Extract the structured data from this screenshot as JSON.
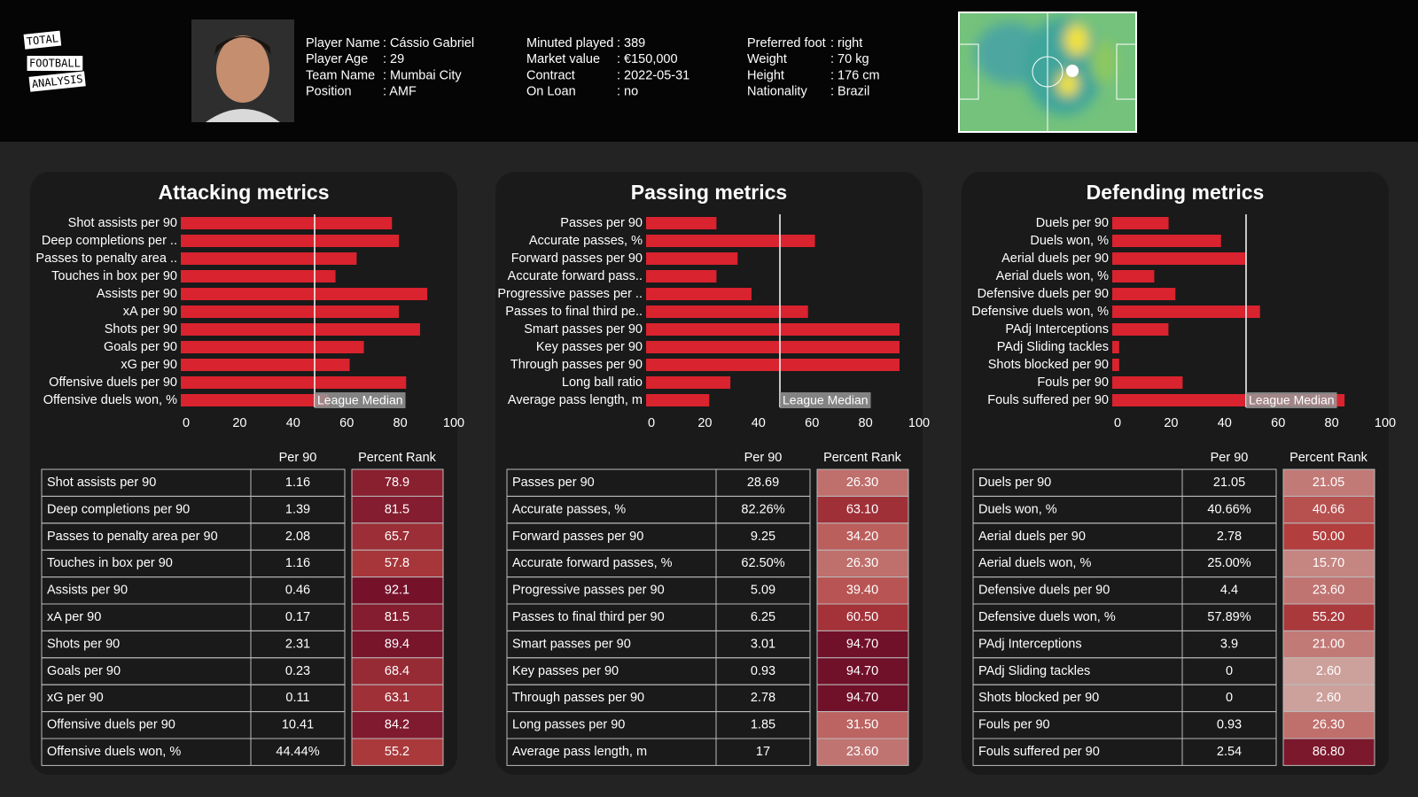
{
  "header": {
    "logo": [
      "TOTAL",
      "FOOTBALL",
      "ANALYSIS"
    ],
    "columns": [
      [
        {
          "label": "Player Name",
          "value": ": Cássio Gabriel"
        },
        {
          "label": "Player Age",
          "value": ": 29"
        },
        {
          "label": "Team Name",
          "value": ": Mumbai City"
        },
        {
          "label": "Position",
          "value": ": AMF"
        }
      ],
      [
        {
          "label": "Minuted played",
          "value": ": 389"
        },
        {
          "label": "Market value",
          "value": ": €150,000"
        },
        {
          "label": "Contract",
          "value": ": 2022-05-31"
        },
        {
          "label": "On Loan",
          "value": ": no"
        }
      ],
      [
        {
          "label": "Preferred foot",
          "value": ": right"
        },
        {
          "label": "Weight",
          "value": ": 70 kg"
        },
        {
          "label": "Height",
          "value": ": 176 cm"
        },
        {
          "label": "Nationality",
          "value": ": Brazil"
        }
      ]
    ]
  },
  "chart_data": [
    {
      "type": "bar",
      "title": "Attacking metrics",
      "color": "#d9232e",
      "categories": [
        "Shot assists per 90",
        "Deep completions per ..",
        "Passes to penalty area ..",
        "Touches in box per 90",
        "Assists per 90",
        "xA per 90",
        "Shots per 90",
        "Goals per 90",
        "xG per 90",
        "Offensive duels per 90",
        "Offensive duels won, %"
      ],
      "values": [
        78.9,
        81.5,
        65.7,
        57.8,
        92.1,
        81.5,
        89.4,
        68.4,
        63.1,
        84.2,
        55.2
      ],
      "xlim": [
        0,
        100
      ],
      "xticks": [
        0,
        20,
        40,
        60,
        80,
        100
      ],
      "median": 50,
      "median_label": "League Median",
      "table": {
        "columns": [
          "Per 90",
          "Percent Rank"
        ],
        "rows": [
          "Shot assists per 90",
          "Deep completions per 90",
          "Passes to penalty area per 90",
          "Touches in box per 90",
          "Assists per 90",
          "xA per 90",
          "Shots per 90",
          "Goals per 90",
          "xG per 90",
          "Offensive duels per 90",
          "Offensive duels won, %"
        ],
        "per90": [
          "1.16",
          "1.39",
          "2.08",
          "1.16",
          "0.46",
          "0.17",
          "2.31",
          "0.23",
          "0.11",
          "10.41",
          "44.44%"
        ]
      }
    },
    {
      "type": "bar",
      "title": "Passing metrics",
      "color": "#d9232e",
      "categories": [
        "Passes per 90",
        "Accurate passes, %",
        "Forward passes per 90",
        "Accurate forward pass..",
        "Progressive passes per ..",
        "Passes to final third pe..",
        "Smart passes per 90",
        "Key passes per 90",
        "Through passes per 90",
        "Long ball ratio",
        "Average pass length, m"
      ],
      "values": [
        26.3,
        63.1,
        34.2,
        26.3,
        39.4,
        60.5,
        94.7,
        94.7,
        94.7,
        31.5,
        23.6
      ],
      "value_labels": [
        "26.30",
        "63.10",
        "34.20",
        "26.30",
        "39.40",
        "60.50",
        "94.70",
        "94.70",
        "94.70",
        "31.50",
        "23.60"
      ],
      "xlim": [
        0,
        100
      ],
      "xticks": [
        0,
        20,
        40,
        60,
        80,
        100
      ],
      "median": 50,
      "median_label": "League Median",
      "table": {
        "columns": [
          "Per 90",
          "Percent Rank"
        ],
        "rows": [
          "Passes per 90",
          "Accurate passes, %",
          "Forward passes per 90",
          "Accurate forward passes, %",
          "Progressive passes per 90",
          "Passes to final third per 90",
          "Smart passes per 90",
          "Key passes per 90",
          "Through passes per 90",
          "Long passes per 90",
          "Average pass length, m"
        ],
        "per90": [
          "28.69",
          "82.26%",
          "9.25",
          "62.50%",
          "5.09",
          "6.25",
          "3.01",
          "0.93",
          "2.78",
          "1.85",
          "17"
        ]
      }
    },
    {
      "type": "bar",
      "title": "Defending metrics",
      "color": "#d9232e",
      "categories": [
        "Duels per 90",
        "Duels won, %",
        "Aerial duels per 90",
        "Aerial duels won, %",
        "Defensive duels per 90",
        "Defensive duels won, %",
        "PAdj Interceptions",
        "PAdj Sliding tackles",
        "Shots blocked per 90",
        "Fouls per 90",
        "Fouls suffered per 90"
      ],
      "values": [
        21.05,
        40.66,
        50,
        15.7,
        23.6,
        55.2,
        21,
        2.6,
        2.6,
        26.3,
        86.8
      ],
      "value_labels": [
        "21.05",
        "40.66",
        "50.00",
        "15.70",
        "23.60",
        "55.20",
        "21.00",
        "2.60",
        "2.60",
        "26.30",
        "86.80"
      ],
      "xlim": [
        0,
        100
      ],
      "xticks": [
        0,
        20,
        40,
        60,
        80,
        100
      ],
      "median": 50,
      "median_label": "League Median",
      "table": {
        "columns": [
          "Per 90",
          "Percent Rank"
        ],
        "rows": [
          "Duels per 90",
          "Duels won, %",
          "Aerial duels per 90",
          "Aerial duels won, %",
          "Defensive duels per 90",
          "Defensive duels won, %",
          "PAdj Interceptions",
          "PAdj Sliding tackles",
          "Shots blocked per 90",
          "Fouls per 90",
          "Fouls suffered per 90"
        ],
        "per90": [
          "21.05",
          "40.66%",
          "2.78",
          "25.00%",
          "4.4",
          "57.89%",
          "3.9",
          "0",
          "0",
          "0.93",
          "2.54"
        ]
      }
    }
  ]
}
